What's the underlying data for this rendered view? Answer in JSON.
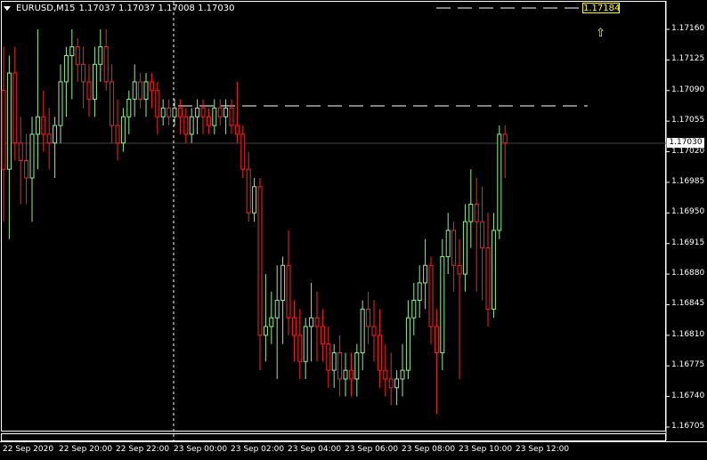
{
  "header": {
    "symbol": "EURUSD,M15",
    "ohlc": "1.17037 1.17037 1.17008 1.17030"
  },
  "price_axis": {
    "labels": [
      "1.17160",
      "1.17125",
      "1.17090",
      "1.17055",
      "1.17020",
      "1.16985",
      "1.16950",
      "1.16915",
      "1.16880",
      "1.16845",
      "1.16810",
      "1.16775",
      "1.16740",
      "1.16705"
    ],
    "current_price": "1.17030",
    "level_label": "1.17184"
  },
  "time_axis": {
    "labels": [
      "22 Sep 2020",
      "22 Sep 20:00",
      "22 Sep 22:00",
      "23 Sep 00:00",
      "23 Sep 02:00",
      "23 Sep 04:00",
      "23 Sep 06:00",
      "23 Sep 08:00",
      "23 Sep 10:00",
      "23 Sep 12:00"
    ]
  },
  "colors": {
    "background": "#000000",
    "bull": "#90ee90",
    "bear": "#ff2020",
    "grid_text": "#ffffff",
    "level": "#ffff00"
  },
  "chart_data": {
    "type": "candlestick",
    "symbol": "EURUSD",
    "timeframe": "M15",
    "ylim": [
      1.16705,
      1.17195
    ],
    "candles": [
      [
        1.1709,
        1.1714,
        1.1694,
        1.17
      ],
      [
        1.17,
        1.1713,
        1.1692,
        1.1711
      ],
      [
        1.1711,
        1.1714,
        1.1701,
        1.1703
      ],
      [
        1.1703,
        1.1706,
        1.1696,
        1.1701
      ],
      [
        1.1701,
        1.1704,
        1.1696,
        1.1699
      ],
      [
        1.1699,
        1.1706,
        1.1694,
        1.1704
      ],
      [
        1.1704,
        1.1716,
        1.17,
        1.1706
      ],
      [
        1.1706,
        1.1709,
        1.1702,
        1.1704
      ],
      [
        1.1704,
        1.1707,
        1.17,
        1.1703
      ],
      [
        1.1703,
        1.1706,
        1.1699,
        1.1705
      ],
      [
        1.1705,
        1.1712,
        1.1703,
        1.171
      ],
      [
        1.171,
        1.1714,
        1.1706,
        1.1713
      ],
      [
        1.1713,
        1.1716,
        1.1708,
        1.1714
      ],
      [
        1.1714,
        1.1715,
        1.171,
        1.1712
      ],
      [
        1.1712,
        1.1714,
        1.1707,
        1.171
      ],
      [
        1.171,
        1.1712,
        1.1706,
        1.1708
      ],
      [
        1.1708,
        1.1714,
        1.1706,
        1.1712
      ],
      [
        1.1712,
        1.1716,
        1.171,
        1.1714
      ],
      [
        1.1714,
        1.1716,
        1.1709,
        1.171
      ],
      [
        1.171,
        1.1712,
        1.1703,
        1.1705
      ],
      [
        1.1705,
        1.1708,
        1.1701,
        1.1703
      ],
      [
        1.1703,
        1.1707,
        1.1702,
        1.1706
      ],
      [
        1.1706,
        1.1709,
        1.1704,
        1.1708
      ],
      [
        1.1708,
        1.1712,
        1.1706,
        1.171
      ],
      [
        1.171,
        1.1711,
        1.1707,
        1.1708
      ],
      [
        1.1708,
        1.1711,
        1.1706,
        1.171
      ],
      [
        1.171,
        1.1711,
        1.1707,
        1.1709
      ],
      [
        1.1709,
        1.171,
        1.1704,
        1.1706
      ],
      [
        1.1706,
        1.1708,
        1.1705,
        1.1707
      ],
      [
        1.1707,
        1.1708,
        1.1705,
        1.1706
      ],
      [
        1.1706,
        1.1708,
        1.1705,
        1.1707
      ],
      [
        1.1707,
        1.1708,
        1.1704,
        1.1706
      ],
      [
        1.1706,
        1.1707,
        1.1703,
        1.1704
      ],
      [
        1.1704,
        1.1707,
        1.1703,
        1.1706
      ],
      [
        1.1706,
        1.1708,
        1.1704,
        1.1707
      ],
      [
        1.1707,
        1.1708,
        1.1704,
        1.1706
      ],
      [
        1.1706,
        1.1707,
        1.1704,
        1.1705
      ],
      [
        1.1705,
        1.1708,
        1.1704,
        1.1707
      ],
      [
        1.1707,
        1.1708,
        1.1705,
        1.1706
      ],
      [
        1.1706,
        1.1708,
        1.1704,
        1.1707
      ],
      [
        1.1707,
        1.1708,
        1.1704,
        1.1705
      ],
      [
        1.1705,
        1.171,
        1.1703,
        1.1704
      ],
      [
        1.1704,
        1.1705,
        1.1699,
        1.17
      ],
      [
        1.17,
        1.1702,
        1.1694,
        1.1695
      ],
      [
        1.1695,
        1.1699,
        1.1694,
        1.1698
      ],
      [
        1.1698,
        1.1699,
        1.1677,
        1.1681
      ],
      [
        1.1681,
        1.1688,
        1.1678,
        1.1682
      ],
      [
        1.1682,
        1.1686,
        1.168,
        1.1683
      ],
      [
        1.1683,
        1.1689,
        1.1676,
        1.1685
      ],
      [
        1.1685,
        1.169,
        1.168,
        1.1689
      ],
      [
        1.1689,
        1.1693,
        1.1681,
        1.1683
      ],
      [
        1.1683,
        1.1685,
        1.1678,
        1.1681
      ],
      [
        1.1681,
        1.1684,
        1.1676,
        1.1678
      ],
      [
        1.1678,
        1.1683,
        1.1676,
        1.1682
      ],
      [
        1.1682,
        1.1687,
        1.1678,
        1.1683
      ],
      [
        1.1683,
        1.1686,
        1.1678,
        1.1682
      ],
      [
        1.1682,
        1.1684,
        1.1678,
        1.168
      ],
      [
        1.168,
        1.1682,
        1.1675,
        1.1677
      ],
      [
        1.1677,
        1.168,
        1.1675,
        1.1679
      ],
      [
        1.1679,
        1.1681,
        1.1674,
        1.1676
      ],
      [
        1.1676,
        1.1679,
        1.1674,
        1.1677
      ],
      [
        1.1677,
        1.1679,
        1.1674,
        1.1676
      ],
      [
        1.1676,
        1.168,
        1.1674,
        1.1679
      ],
      [
        1.1679,
        1.1685,
        1.1677,
        1.1684
      ],
      [
        1.1684,
        1.1686,
        1.168,
        1.1682
      ],
      [
        1.1682,
        1.1685,
        1.1678,
        1.1681
      ],
      [
        1.1681,
        1.1684,
        1.1675,
        1.1677
      ],
      [
        1.1677,
        1.168,
        1.1674,
        1.1676
      ],
      [
        1.1676,
        1.1679,
        1.1673,
        1.1675
      ],
      [
        1.1675,
        1.1677,
        1.1673,
        1.1676
      ],
      [
        1.1676,
        1.168,
        1.1674,
        1.1677
      ],
      [
        1.1677,
        1.1685,
        1.1676,
        1.1683
      ],
      [
        1.1683,
        1.1687,
        1.1681,
        1.1685
      ],
      [
        1.1685,
        1.1689,
        1.1683,
        1.1687
      ],
      [
        1.1687,
        1.1692,
        1.1684,
        1.1689
      ],
      [
        1.1689,
        1.169,
        1.168,
        1.1682
      ],
      [
        1.1682,
        1.1684,
        1.1672,
        1.1679
      ],
      [
        1.1679,
        1.1692,
        1.1677,
        1.169
      ],
      [
        1.169,
        1.1695,
        1.1688,
        1.1693
      ],
      [
        1.1693,
        1.1694,
        1.1686,
        1.1689
      ],
      [
        1.1689,
        1.1692,
        1.1676,
        1.1688
      ],
      [
        1.1688,
        1.1696,
        1.1686,
        1.1694
      ],
      [
        1.1694,
        1.17,
        1.1691,
        1.1696
      ],
      [
        1.1696,
        1.1699,
        1.1686,
        1.1694
      ],
      [
        1.1694,
        1.1698,
        1.1685,
        1.1691
      ],
      [
        1.1691,
        1.1695,
        1.1682,
        1.1684
      ],
      [
        1.1684,
        1.1695,
        1.1683,
        1.1693
      ],
      [
        1.1693,
        1.1705,
        1.1692,
        1.1704
      ],
      [
        1.1704,
        1.1705,
        1.1699,
        1.1703
      ]
    ]
  }
}
